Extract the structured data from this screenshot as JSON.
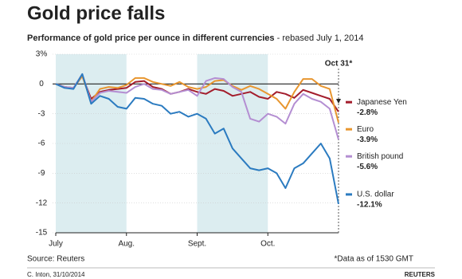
{
  "chart_data": {
    "type": "line",
    "title": "Gold price falls",
    "subtitle": "Performance of gold price per ounce in different currencies",
    "subtitle_note": "- rebased July 1, 2014",
    "annotation": "Oct 31*",
    "source": "Source: Reuters",
    "footnote": "*Data as of 1530 GMT",
    "credit": "C. Inton, 31/10/2014",
    "logo": "REUTERS",
    "categories": [
      "July",
      null,
      null,
      null,
      null,
      null,
      null,
      null,
      "Aug.",
      null,
      null,
      null,
      null,
      null,
      null,
      null,
      "Sept.",
      null,
      null,
      null,
      null,
      null,
      null,
      null,
      "Oct.",
      null,
      null,
      null,
      null,
      null,
      null,
      null,
      null
    ],
    "ylim": [
      -15,
      3
    ],
    "yticks": [
      {
        "value": 3,
        "label": "3%"
      },
      0,
      -3,
      -6,
      -9,
      -12,
      -15
    ],
    "shade_color": "#dcedf0",
    "series": [
      {
        "name": "Japanese Yen",
        "color": "#a31d2c",
        "values": [
          0,
          -0.3,
          -0.4,
          0.8,
          -1.5,
          -0.8,
          -0.6,
          -0.5,
          -0.4,
          0.2,
          0.3,
          -0.3,
          -0.5,
          -1.0,
          -0.8,
          -0.5,
          -0.8,
          -1.0,
          -0.5,
          -0.7,
          -1.2,
          -1.0,
          -0.8,
          -1.3,
          -1.5,
          -0.8,
          -1.0,
          -1.4,
          -0.6,
          -0.9,
          -1.2,
          -1.5,
          -2.8
        ],
        "value_labels": [
          null,
          null,
          null,
          null,
          null,
          null,
          null,
          null,
          null,
          null,
          null,
          null,
          null,
          null,
          null,
          null,
          null,
          null,
          null,
          null,
          null,
          null,
          null,
          null,
          null,
          null,
          null,
          null,
          null,
          null,
          null,
          null,
          "-2.8%"
        ]
      },
      {
        "name": "Euro",
        "color": "#e8962f",
        "values": [
          0,
          -0.3,
          -0.4,
          0.8,
          -1.8,
          -0.5,
          -0.3,
          -0.4,
          -0.1,
          0.6,
          0.6,
          0.2,
          0,
          -0.2,
          0.2,
          -0.3,
          -0.5,
          -0.3,
          0.3,
          0.4,
          -0.2,
          -0.6,
          -0.2,
          -0.5,
          -1.0,
          -1.5,
          -2.5,
          -0.8,
          0.5,
          0.5,
          -0.2,
          -0.5,
          -3.9
        ],
        "value_labels": [
          null,
          null,
          null,
          null,
          null,
          null,
          null,
          null,
          null,
          null,
          null,
          null,
          null,
          null,
          null,
          null,
          null,
          null,
          null,
          null,
          null,
          null,
          null,
          null,
          null,
          null,
          null,
          null,
          null,
          null,
          null,
          null,
          "-3.9%"
        ]
      },
      {
        "name": "British pound",
        "color": "#b48ed2",
        "values": [
          0,
          -0.3,
          -0.4,
          1.0,
          -1.8,
          -0.9,
          -0.7,
          -0.8,
          -0.9,
          -0.3,
          0,
          -0.5,
          -0.6,
          -1.0,
          -0.8,
          -0.6,
          -1.2,
          0.3,
          0.6,
          0.5,
          -0.3,
          -0.8,
          -3.5,
          -3.8,
          -3.0,
          -3.3,
          -4.0,
          -2.0,
          -1.0,
          -1.5,
          -1.8,
          -2.5,
          -5.6
        ],
        "value_labels": [
          null,
          null,
          null,
          null,
          null,
          null,
          null,
          null,
          null,
          null,
          null,
          null,
          null,
          null,
          null,
          null,
          null,
          null,
          null,
          null,
          null,
          null,
          null,
          null,
          null,
          null,
          null,
          null,
          null,
          null,
          null,
          null,
          "-5.6%"
        ]
      },
      {
        "name": "U.S. dollar",
        "color": "#2b7bc0",
        "values": [
          0,
          -0.4,
          -0.5,
          1.0,
          -2.0,
          -1.2,
          -1.5,
          -2.3,
          -2.5,
          -1.4,
          -1.5,
          -2.0,
          -2.2,
          -3.0,
          -2.8,
          -3.3,
          -3.0,
          -3.5,
          -5.0,
          -4.5,
          -6.5,
          -7.5,
          -8.5,
          -8.7,
          -8.5,
          -9.0,
          -10.5,
          -8.5,
          -8.0,
          -7.0,
          -6.0,
          -7.5,
          -12.1
        ],
        "value_labels": [
          null,
          null,
          null,
          null,
          null,
          null,
          null,
          null,
          null,
          null,
          null,
          null,
          null,
          null,
          null,
          null,
          null,
          null,
          null,
          null,
          null,
          null,
          null,
          null,
          null,
          null,
          null,
          null,
          null,
          null,
          null,
          null,
          "-12.1%"
        ]
      }
    ]
  }
}
